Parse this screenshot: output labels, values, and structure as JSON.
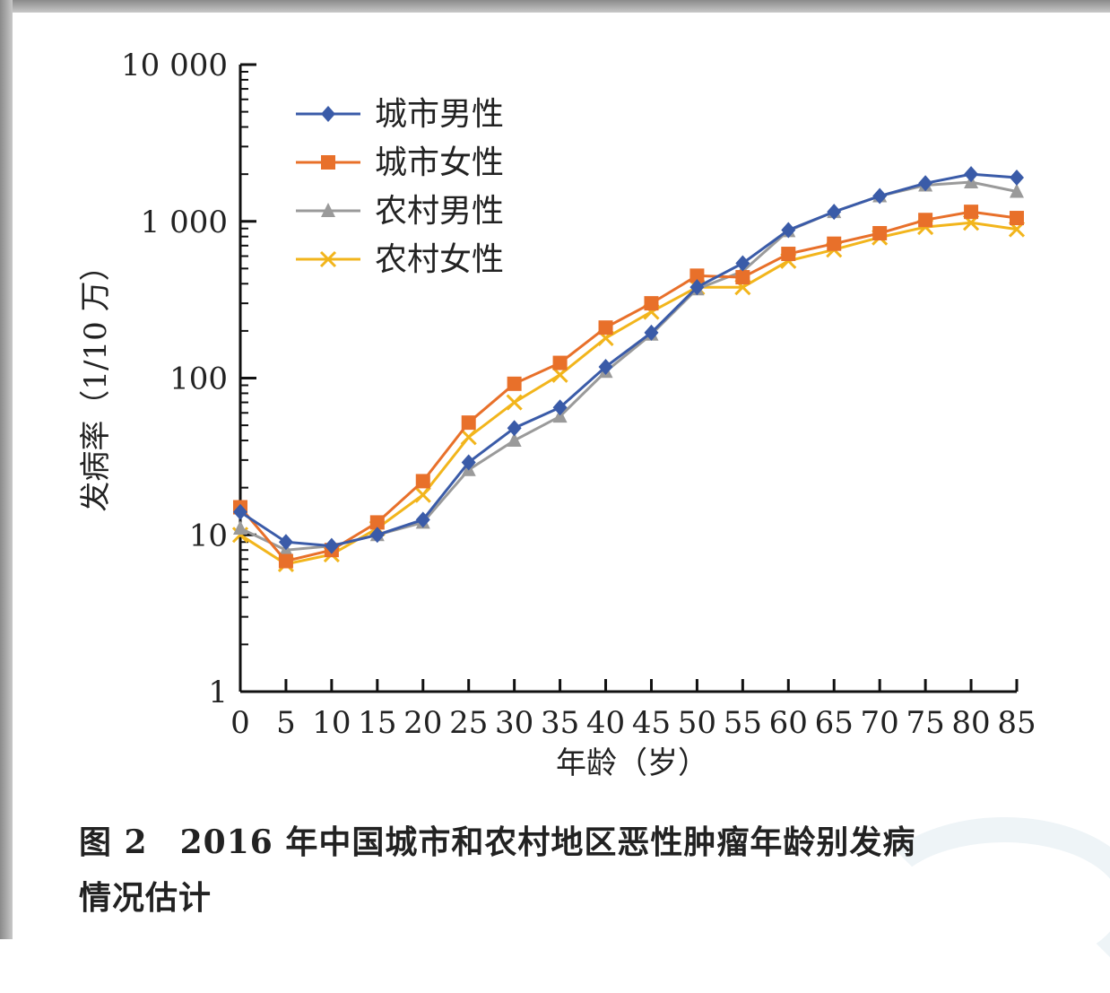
{
  "chart_data": {
    "type": "line",
    "y_scale": "log",
    "ylim": [
      1,
      10000
    ],
    "xlim": [
      0,
      85
    ],
    "x": [
      0,
      5,
      10,
      15,
      20,
      25,
      30,
      35,
      40,
      45,
      50,
      55,
      60,
      65,
      70,
      75,
      80,
      85
    ],
    "xlabel": "年龄（岁）",
    "ylabel": "发病率（1/10 万）",
    "x_ticks": [
      "0",
      "5",
      "10",
      "15",
      "20",
      "25",
      "30",
      "35",
      "40",
      "45",
      "50",
      "55",
      "60",
      "65",
      "70",
      "75",
      "80",
      "85"
    ],
    "y_ticks": [
      {
        "value": 1,
        "label": "1"
      },
      {
        "value": 10,
        "label": "10"
      },
      {
        "value": 100,
        "label": "100"
      },
      {
        "value": 1000,
        "label": "1 000"
      },
      {
        "value": 10000,
        "label": "10 000"
      }
    ],
    "grid": false,
    "legend_position": "top-left",
    "series": [
      {
        "name": "城市男性",
        "color": "#3a5ba8",
        "marker": "diamond",
        "values": [
          14,
          9,
          8.5,
          10,
          12.5,
          29,
          48,
          65,
          118,
          195,
          380,
          540,
          880,
          1150,
          1450,
          1750,
          2000,
          1900
        ]
      },
      {
        "name": "城市女性",
        "color": "#e8702a",
        "marker": "square",
        "values": [
          15,
          6.8,
          8,
          12,
          22,
          52,
          92,
          125,
          210,
          300,
          450,
          440,
          620,
          720,
          840,
          1020,
          1150,
          1050
        ]
      },
      {
        "name": "农村男性",
        "color": "#9a9a9a",
        "marker": "triangle",
        "values": [
          11,
          8,
          8.5,
          10,
          12,
          26,
          40,
          57,
          110,
          190,
          370,
          480,
          870,
          1150,
          1450,
          1700,
          1780,
          1550
        ]
      },
      {
        "name": "农村女性",
        "color": "#f2b51c",
        "marker": "cross",
        "values": [
          10,
          6.5,
          7.5,
          11,
          18,
          42,
          70,
          105,
          180,
          265,
          380,
          380,
          560,
          660,
          790,
          920,
          980,
          890
        ]
      }
    ]
  },
  "caption": {
    "figure_label": "图 2",
    "text": "2016 年中国城市和农村地区恶性肿瘤年龄别发病",
    "text_line2": "情况估计"
  }
}
